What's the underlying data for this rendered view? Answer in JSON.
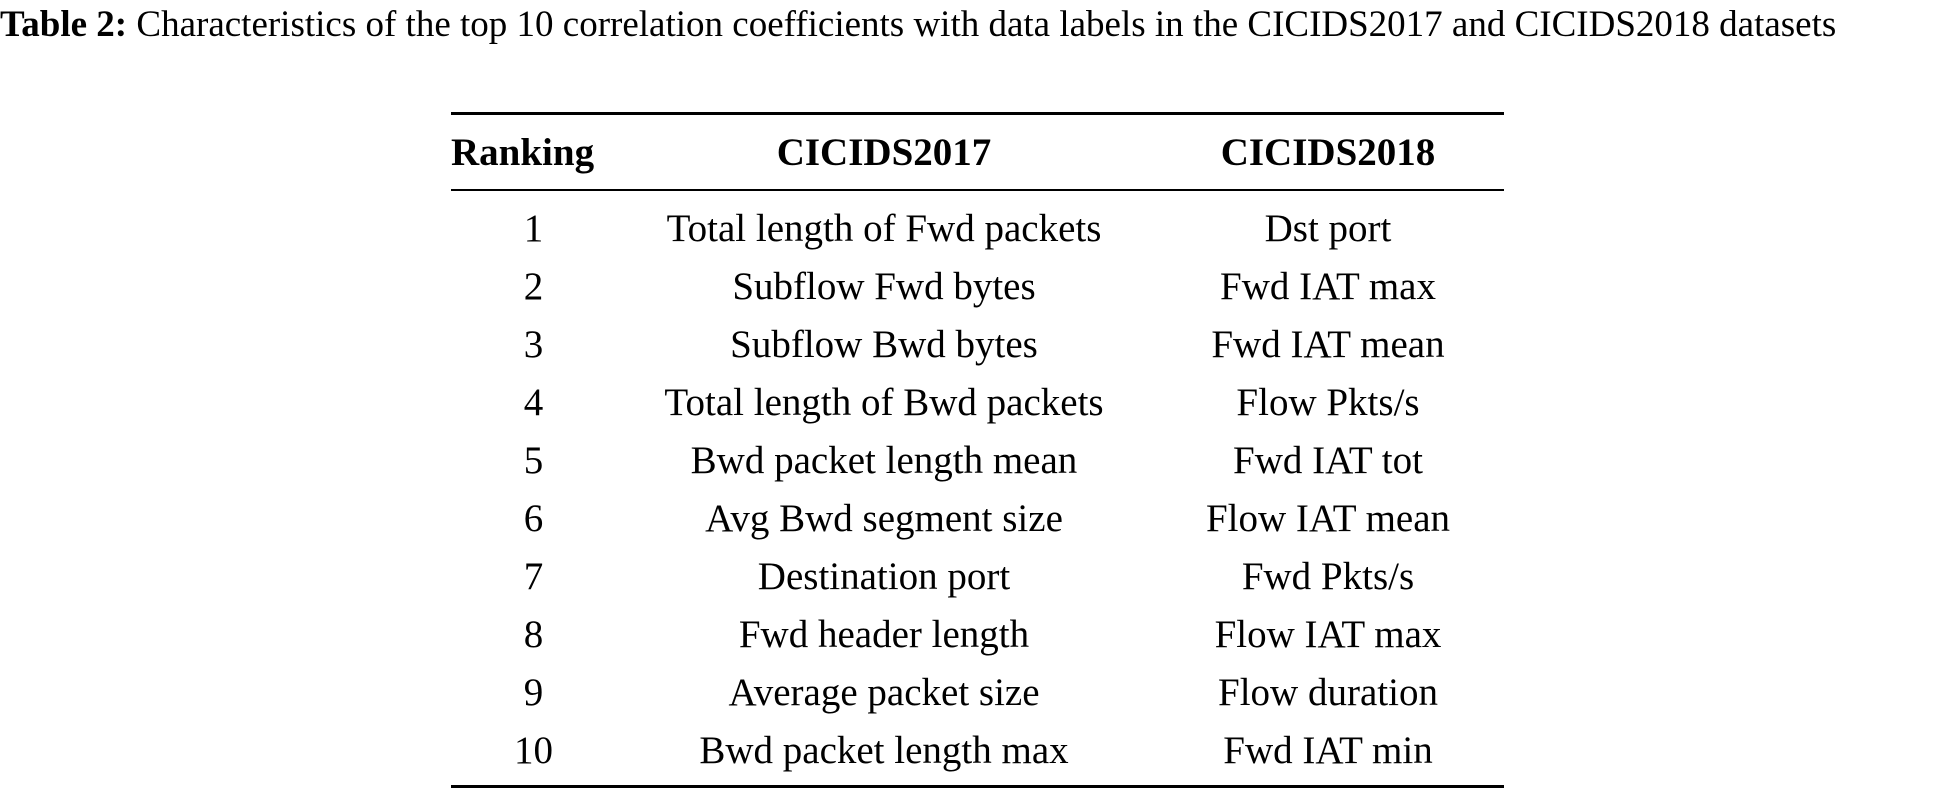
{
  "caption": {
    "label": "Table 2:",
    "text": " Characteristics of the top 10 correlation coefficients with data labels in the CICIDS2017 and CICIDS2018 datasets"
  },
  "table": {
    "headers": {
      "ranking": "Ranking",
      "cicids2017": "CICIDS2017",
      "cicids2018": "CICIDS2018"
    },
    "rows": [
      {
        "rank": "1",
        "cicids2017": "Total length of Fwd packets",
        "cicids2018": "Dst port"
      },
      {
        "rank": "2",
        "cicids2017": "Subflow Fwd bytes",
        "cicids2018": "Fwd IAT max"
      },
      {
        "rank": "3",
        "cicids2017": "Subflow Bwd bytes",
        "cicids2018": "Fwd IAT mean"
      },
      {
        "rank": "4",
        "cicids2017": "Total length of Bwd packets",
        "cicids2018": "Flow Pkts/s"
      },
      {
        "rank": "5",
        "cicids2017": "Bwd packet length mean",
        "cicids2018": "Fwd IAT tot"
      },
      {
        "rank": "6",
        "cicids2017": "Avg Bwd segment size",
        "cicids2018": "Flow IAT mean"
      },
      {
        "rank": "7",
        "cicids2017": "Destination port",
        "cicids2018": "Fwd Pkts/s"
      },
      {
        "rank": "8",
        "cicids2017": "Fwd header length",
        "cicids2018": "Flow IAT max"
      },
      {
        "rank": "9",
        "cicids2017": "Average packet size",
        "cicids2018": "Flow duration"
      },
      {
        "rank": "10",
        "cicids2017": "Bwd packet length max",
        "cicids2018": "Fwd IAT min"
      }
    ]
  }
}
